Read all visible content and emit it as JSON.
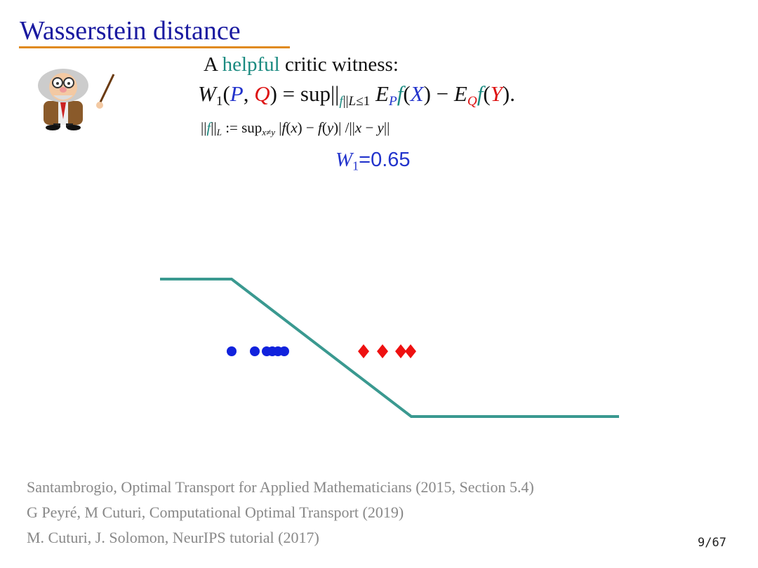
{
  "header": {
    "title": "Wasserstein distance"
  },
  "intro": {
    "prefix": "A",
    "highlight": "helpful",
    "suffix": "critic witness:"
  },
  "formulas": [
    {
      "segments": [
        {
          "t": "W",
          "i": true
        },
        {
          "t": "1",
          "sub": true
        },
        {
          "t": "("
        },
        {
          "t": "P",
          "i": true,
          "c": "#2233cc"
        },
        {
          "t": ", "
        },
        {
          "t": "Q",
          "i": true,
          "c": "#dd1111"
        },
        {
          "t": ") = sup"
        },
        {
          "t": "||"
        },
        {
          "t": "f",
          "sub": true,
          "i": true,
          "c": "#1a8a80"
        },
        {
          "t": "||",
          "sub": true
        },
        {
          "t": "L",
          "sub": true,
          "i": true
        },
        {
          "t": "≤1",
          "sub": true
        },
        {
          "t": " E",
          "i": true
        },
        {
          "t": "P",
          "sub": true,
          "i": true,
          "c": "#2233cc"
        },
        {
          "t": "f",
          "i": true,
          "c": "#1a8a80"
        },
        {
          "t": "("
        },
        {
          "t": "X",
          "i": true,
          "c": "#2233cc"
        },
        {
          "t": ") − "
        },
        {
          "t": "E",
          "i": true
        },
        {
          "t": "Q",
          "sub": true,
          "i": true,
          "c": "#dd1111"
        },
        {
          "t": "f",
          "i": true,
          "c": "#1a8a80"
        },
        {
          "t": "("
        },
        {
          "t": "Y",
          "i": true,
          "c": "#dd1111"
        },
        {
          "t": ")."
        }
      ]
    },
    {
      "segments": [
        {
          "t": "||"
        },
        {
          "t": "f",
          "i": true,
          "c": "#1a8a80"
        },
        {
          "t": "||"
        },
        {
          "t": "L",
          "sub": true,
          "i": true
        },
        {
          "t": " := sup"
        },
        {
          "t": "x≠y",
          "sub": true,
          "i": true
        },
        {
          "t": " |"
        },
        {
          "t": "f",
          "i": true
        },
        {
          "t": "("
        },
        {
          "t": "x",
          "i": true
        },
        {
          "t": ") − "
        },
        {
          "t": "f",
          "i": true
        },
        {
          "t": "("
        },
        {
          "t": "y",
          "i": true
        },
        {
          "t": ")| /||"
        },
        {
          "t": "x",
          "i": true
        },
        {
          "t": " − "
        },
        {
          "t": "y",
          "i": true
        },
        {
          "t": "||"
        }
      ]
    },
    {
      "segments": [
        {
          "t": "W",
          "i": true,
          "c": "#2233cc"
        },
        {
          "t": "1",
          "sub": true,
          "c": "#2233cc"
        },
        {
          "t": "=0.65",
          "c": "#2233cc",
          "sans": true
        }
      ]
    }
  ],
  "references": [
    "Santambrogio, Optimal Transport for Applied Mathematicians (2015, Section 5.4)",
    "G Peyré, M Cuturi, Computational Optimal Transport (2019)",
    "M. Cuturi, J. Solomon, NeurIPS tutorial (2017)"
  ],
  "page_number": "9/67"
}
